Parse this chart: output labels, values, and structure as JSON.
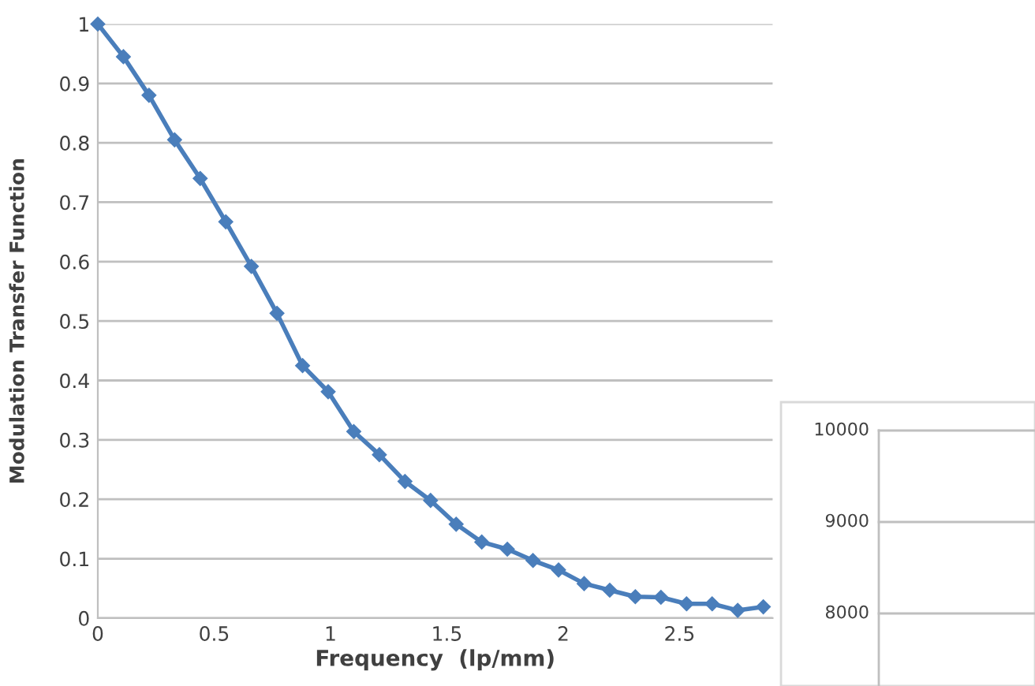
{
  "chart_data": [
    {
      "type": "line",
      "xlabel": "Frequency  (lp/mm)",
      "ylabel": "Modulation Transfer Function",
      "x": [
        0,
        0.11,
        0.22,
        0.33,
        0.44,
        0.55,
        0.66,
        0.77,
        0.88,
        0.99,
        1.1,
        1.21,
        1.32,
        1.43,
        1.54,
        1.65,
        1.76,
        1.87,
        1.98,
        2.09,
        2.2,
        2.31,
        2.42,
        2.53,
        2.64,
        2.75,
        2.86
      ],
      "series": [
        {
          "color": "#4a7ebb",
          "values": [
            1,
            0.945,
            0.88,
            0.805,
            0.74,
            0.667,
            0.592,
            0.513,
            0.425,
            0.381,
            0.314,
            0.275,
            0.23,
            0.198,
            0.158,
            0.128,
            0.116,
            0.097,
            0.081,
            0.058,
            0.047,
            0.036,
            0.035,
            0.024,
            0.024,
            0.013,
            0.019
          ]
        }
      ],
      "xlim": [
        0,
        2.9
      ],
      "xticks": [
        0,
        0.5,
        1,
        1.5,
        2,
        2.5
      ],
      "ylim": [
        0,
        1
      ],
      "yticks": [
        0,
        0.1,
        0.2,
        0.3,
        0.4,
        0.5,
        0.6,
        0.7,
        0.8,
        0.9,
        1
      ],
      "grid": "y",
      "marker": "diamond",
      "line_style": "solid",
      "legend": false
    },
    {
      "type": "other",
      "annotations": [
        "10000",
        "9000",
        "8000"
      ]
    }
  ]
}
